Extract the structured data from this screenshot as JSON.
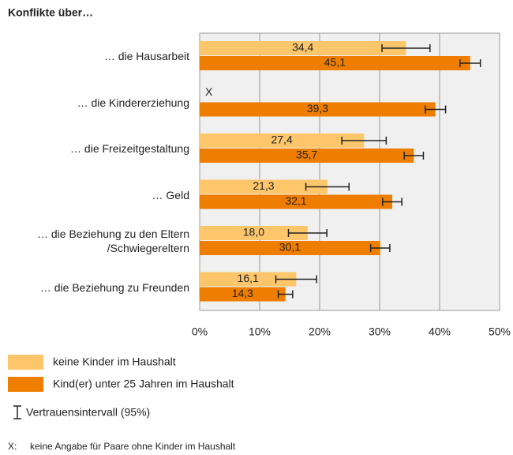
{
  "chart_data": {
    "type": "bar",
    "orientation": "horizontal",
    "title": "Konflikte über…",
    "categories": [
      "… die Hausarbeit",
      "… die Kindererziehung",
      "… die Freizeitgestaltung",
      "… Geld",
      "… die Beziehung zu den Eltern\n/Schwiegereltern",
      "… die Beziehung zu Freunden"
    ],
    "series": [
      {
        "name": "keine Kinder im Haushalt",
        "color": "#fdc66b",
        "values": [
          34.4,
          null,
          27.4,
          21.3,
          18.0,
          16.1
        ],
        "value_labels": [
          "34,4",
          "X",
          "27,4",
          "21,3",
          "18,0",
          "16,1"
        ],
        "errors": [
          4.0,
          null,
          3.7,
          3.6,
          3.2,
          3.4
        ]
      },
      {
        "name": "Kind(er) unter 25 Jahren im Haushalt",
        "color": "#ef7d00",
        "values": [
          45.1,
          39.3,
          35.7,
          32.1,
          30.1,
          14.3
        ],
        "value_labels": [
          "45,1",
          "39,3",
          "35,7",
          "32,1",
          "30,1",
          "14,3"
        ],
        "errors": [
          1.7,
          1.7,
          1.6,
          1.6,
          1.6,
          1.2
        ]
      }
    ],
    "xlim": [
      0,
      50
    ],
    "xticks": [
      {
        "value": 0,
        "label": "0%"
      },
      {
        "value": 10,
        "label": "10%"
      },
      {
        "value": 20,
        "label": "20%"
      },
      {
        "value": 30,
        "label": "30%"
      },
      {
        "value": 40,
        "label": "40%"
      },
      {
        "value": 50,
        "label": "50%"
      }
    ],
    "grid": true,
    "error_legend": "Vertrauensintervall (95%)",
    "footnote": {
      "marker": "X:",
      "text": "keine Angabe für Paare ohne Kinder im Haushalt"
    }
  }
}
